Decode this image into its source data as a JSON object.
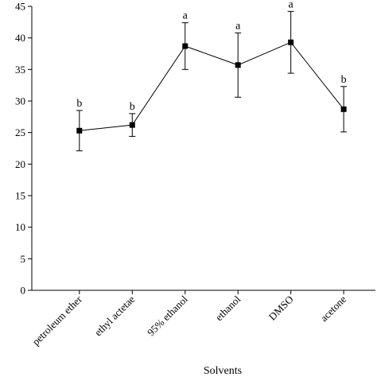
{
  "chart_data": {
    "type": "line",
    "title": "",
    "xlabel": "Solvents",
    "ylabel": "",
    "ylim": [
      0,
      45
    ],
    "yticks": [
      0,
      5,
      10,
      15,
      20,
      25,
      30,
      35,
      40,
      45
    ],
    "grid": false,
    "categories": [
      "petroleum ether",
      "ethyl actetae",
      "95% ethanol",
      "ethanol",
      "DMSO",
      "acetone"
    ],
    "series": [
      {
        "values": [
          25.3,
          26.2,
          38.7,
          35.7,
          39.3,
          28.7
        ],
        "error": [
          3.2,
          1.8,
          3.7,
          5.1,
          4.9,
          3.6
        ],
        "significance": [
          "b",
          "b",
          "a",
          "a",
          "a",
          "b"
        ],
        "color": "#000000",
        "marker": "square"
      }
    ]
  }
}
